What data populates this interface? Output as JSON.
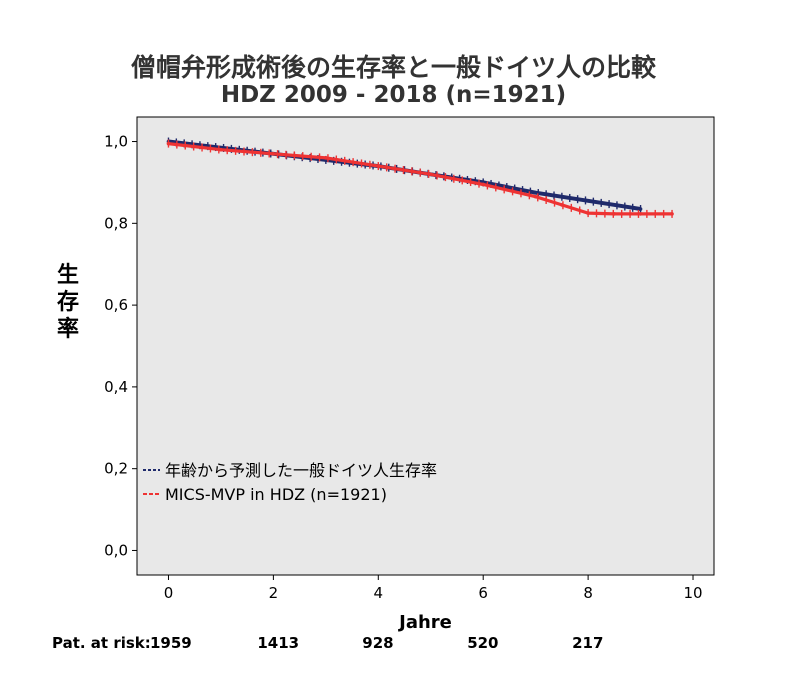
{
  "chart_data": {
    "type": "line",
    "title": "僧帽弁形成術後の生存率と一般ドイツ人の比較",
    "subtitle": "HDZ 2009 - 2018 (n=1921)",
    "xlabel": "Jahre",
    "ylabel": "生存率",
    "xlim": [
      -0.6,
      10.4
    ],
    "ylim": [
      -0.06,
      1.06
    ],
    "x_ticks": [
      0,
      2,
      4,
      6,
      8,
      10
    ],
    "x_tick_labels": [
      "0",
      "2",
      "4",
      "6",
      "8",
      "10"
    ],
    "y_ticks": [
      0.0,
      0.2,
      0.4,
      0.6,
      0.8,
      1.0
    ],
    "y_tick_labels": [
      "0,0",
      "0,2",
      "0,4",
      "0,6",
      "0,8",
      "1,0"
    ],
    "grid": false,
    "legend": "lower-left",
    "plot_background": "#e8e8e8",
    "series": [
      {
        "name": "年齢から予測した一般ドイツ人生存率",
        "color": "#1f2a6b",
        "x": [
          0,
          1,
          2,
          3,
          4,
          5,
          6,
          7,
          8,
          9
        ],
        "y": [
          1.0,
          0.985,
          0.97,
          0.955,
          0.94,
          0.92,
          0.9,
          0.875,
          0.855,
          0.835
        ]
      },
      {
        "name": "MICS-MVP in HDZ (n=1921)",
        "color": "#ee3333",
        "x": [
          0,
          1,
          2,
          3,
          4,
          5,
          6,
          7,
          7.5,
          8,
          8.5,
          9,
          9.6
        ],
        "y": [
          0.995,
          0.98,
          0.97,
          0.96,
          0.94,
          0.92,
          0.895,
          0.865,
          0.845,
          0.825,
          0.823,
          0.823,
          0.823
        ]
      }
    ],
    "risk_table": {
      "label": "Pat. at risk:",
      "x": [
        0,
        2,
        4,
        6,
        8
      ],
      "values": [
        "1959",
        "1413",
        "928",
        "520",
        "217"
      ]
    }
  }
}
